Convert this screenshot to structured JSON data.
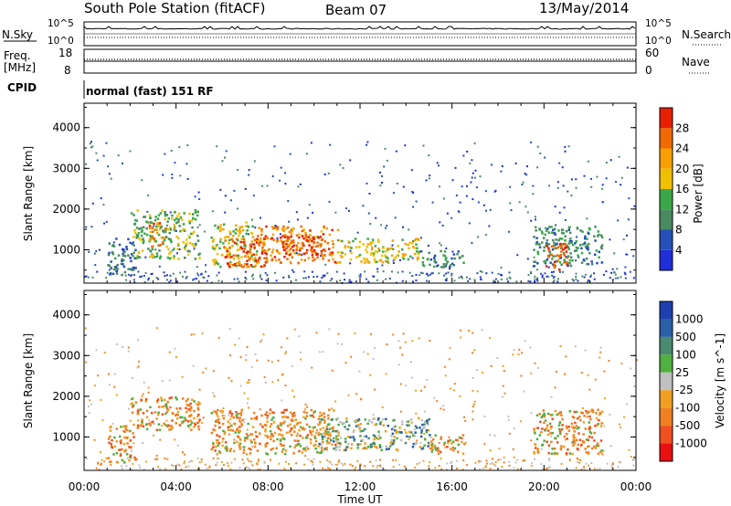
{
  "header": {
    "station": "South Pole Station (fitACF)",
    "beam": "Beam 07",
    "date": "13/May/2014"
  },
  "strip_panels": {
    "nsky_label": "N.Sky",
    "nsky_ticks": [
      "10^5",
      "10^0"
    ],
    "nsearch_label": "N.Search",
    "nsearch_ticks": [
      "10^5",
      "10^0"
    ],
    "freq_label": "Freq.",
    "freq_unit": "[MHz]",
    "freq_ticks": [
      "18",
      "8"
    ],
    "nave_label": "Nave",
    "nave_ticks": [
      "60",
      "0"
    ],
    "cpid_label": "CPID",
    "cpid_text": "normal (fast) 151 RF"
  },
  "colors": {
    "power": [
      "#1f2ed8",
      "#2450b8",
      "#4a8a60",
      "#3aa848",
      "#f0c000",
      "#f7a000",
      "#f06a00",
      "#e82000"
    ],
    "velocity": [
      "#1f3fb0",
      "#2a60a8",
      "#4a8a70",
      "#50b040",
      "#c0c0c0",
      "#f0a020",
      "#f08020",
      "#f05020",
      "#e81010"
    ]
  },
  "chart_data": [
    {
      "type": "heatmap",
      "name": "Power",
      "xlabel": "",
      "ylabel": "Slant Range [km]",
      "x_ticks": [
        "00:00",
        "04:00",
        "08:00",
        "12:00",
        "16:00",
        "20:00",
        "00:00"
      ],
      "y_ticks": [
        "1000",
        "2000",
        "3000",
        "4000"
      ],
      "xlim": [
        0,
        24
      ],
      "ylim": [
        180,
        4600
      ],
      "colorbar": {
        "label": "Power [dB]",
        "ticks": [
          "4",
          "8",
          "12",
          "16",
          "20",
          "24",
          "28"
        ],
        "range": [
          0,
          32
        ]
      },
      "regions": [
        {
          "t0": 1.0,
          "t1": 2.2,
          "r0": 400,
          "r1": 1300,
          "level": 8
        },
        {
          "t0": 2.0,
          "t1": 5.0,
          "r0": 800,
          "r1": 2000,
          "level": 14
        },
        {
          "t0": 2.8,
          "t1": 3.5,
          "r0": 1100,
          "r1": 1700,
          "level": 24
        },
        {
          "t0": 5.5,
          "t1": 7.5,
          "r0": 600,
          "r1": 1700,
          "level": 18
        },
        {
          "t0": 6.0,
          "t1": 8.0,
          "r0": 600,
          "r1": 1300,
          "level": 28
        },
        {
          "t0": 7.5,
          "t1": 11.0,
          "r0": 700,
          "r1": 1600,
          "level": 24
        },
        {
          "t0": 8.5,
          "t1": 10.5,
          "r0": 900,
          "r1": 1400,
          "level": 28
        },
        {
          "t0": 11.0,
          "t1": 14.5,
          "r0": 700,
          "r1": 1300,
          "level": 18
        },
        {
          "t0": 14.5,
          "t1": 16.5,
          "r0": 600,
          "r1": 1000,
          "level": 10
        },
        {
          "t0": 19.5,
          "t1": 22.5,
          "r0": 600,
          "r1": 1600,
          "level": 10
        },
        {
          "t0": 20.0,
          "t1": 21.0,
          "r0": 500,
          "r1": 1200,
          "level": 28
        }
      ]
    },
    {
      "type": "heatmap",
      "name": "Velocity",
      "xlabel": "Time UT",
      "ylabel": "Slant Range [km]",
      "x_ticks": [
        "00:00",
        "04:00",
        "08:00",
        "12:00",
        "16:00",
        "20:00",
        "00:00"
      ],
      "y_ticks": [
        "1000",
        "2000",
        "3000",
        "4000"
      ],
      "xlim": [
        0,
        24
      ],
      "ylim": [
        180,
        4600
      ],
      "colorbar": {
        "label": "Velocity [m s^-1]",
        "ticks": [
          "1000",
          "500",
          "100",
          "25",
          "-25",
          "-100",
          "-500",
          "-1000"
        ],
        "range": [
          -1000,
          1000
        ]
      },
      "regions": [
        {
          "t0": 1.0,
          "t1": 2.2,
          "r0": 400,
          "r1": 1300,
          "value": -300
        },
        {
          "t0": 2.0,
          "t1": 5.0,
          "r0": 1200,
          "r1": 2000,
          "value": -300
        },
        {
          "t0": 5.5,
          "t1": 11.0,
          "r0": 600,
          "r1": 1700,
          "value": -300
        },
        {
          "t0": 10.0,
          "t1": 15.0,
          "r0": 700,
          "r1": 1500,
          "value": 150
        },
        {
          "t0": 15.0,
          "t1": 16.5,
          "r0": 600,
          "r1": 1100,
          "value": -300
        },
        {
          "t0": 19.5,
          "t1": 22.5,
          "r0": 600,
          "r1": 1700,
          "value": -300
        }
      ]
    }
  ]
}
